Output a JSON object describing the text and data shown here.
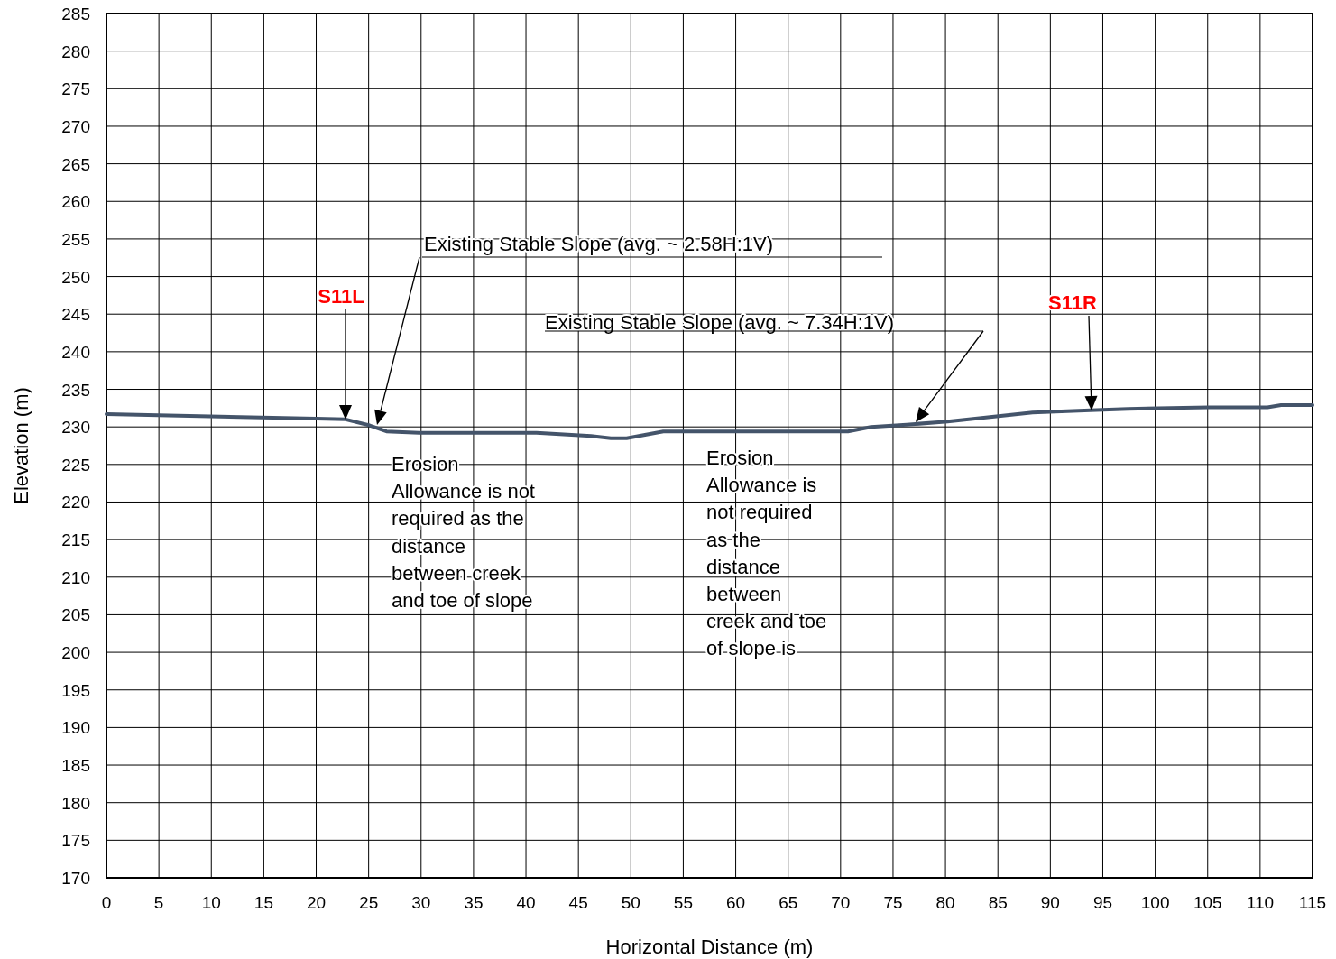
{
  "chart_data": {
    "type": "line",
    "xlabel": "Horizontal Distance (m)",
    "ylabel": "Elevation (m)",
    "xlim": [
      0,
      115
    ],
    "xticks": [
      0,
      5,
      10,
      15,
      20,
      25,
      30,
      35,
      40,
      45,
      50,
      55,
      60,
      65,
      70,
      75,
      80,
      85,
      90,
      95,
      100,
      105,
      110,
      115
    ],
    "ylim": [
      170,
      285
    ],
    "yticks": [
      170,
      175,
      180,
      185,
      190,
      195,
      200,
      205,
      210,
      215,
      220,
      225,
      230,
      235,
      240,
      245,
      250,
      255,
      260,
      265,
      270,
      275,
      280,
      285
    ],
    "grid": true,
    "marker": "none",
    "line_style": "solid",
    "series": [
      {
        "color": "#44546a",
        "x": [
          0,
          20,
          22.8,
          25.1,
          26.7,
          29.8,
          41,
          46.2,
          48.1,
          49.6,
          53.1,
          70.7,
          72.9,
          76.3,
          80.2,
          88.3,
          93.8,
          97.4,
          105.1,
          110.7,
          112,
          115
        ],
        "values": [
          231.7,
          231.1,
          231.0,
          230.2,
          229.4,
          229.2,
          229.2,
          228.8,
          228.5,
          228.5,
          229.4,
          229.4,
          230.0,
          230.3,
          230.7,
          231.9,
          232.2,
          232.4,
          232.6,
          232.6,
          232.9,
          232.9
        ]
      }
    ],
    "annotations": [
      "S11L",
      "S11R",
      "Existing Stable Slope (avg. ~ 2.58H:1V)",
      "Existing Stable Slope (avg. ~ 7.34H:1V)",
      "Erosion\nAllowance is not\nrequired as the\ndistance\nbetween creek\nand toe of slope",
      "Erosion\nAllowance is\nnot required\nas the\ndistance\nbetween\ncreek and toe\nof slope is"
    ]
  }
}
